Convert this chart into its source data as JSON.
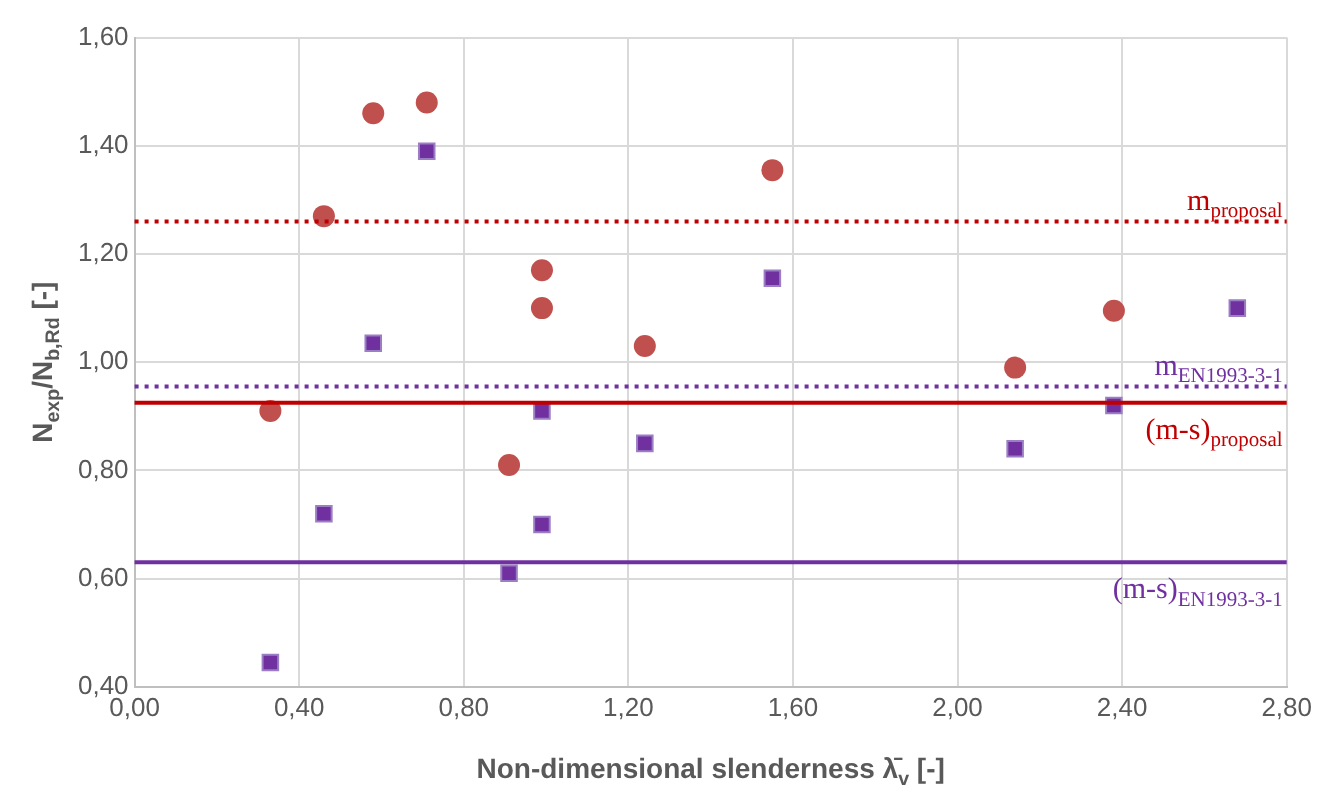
{
  "chart_data": {
    "type": "scatter",
    "xlabel": "Non-dimensional slenderness λ̄$_{v}$ [-]",
    "ylabel": "N$_{exp}$/N$_{b,Rd}$ [-]",
    "series": [
      {
        "color": "#c0504d",
        "marker": "circle",
        "x": [
          0.33,
          0.46,
          0.58,
          0.71,
          0.91,
          0.99,
          0.99,
          1.24,
          1.55,
          2.14,
          2.38
        ],
        "values": [
          0.91,
          1.27,
          1.46,
          1.48,
          0.81,
          1.17,
          1.1,
          1.03,
          1.355,
          0.99,
          1.095
        ]
      },
      {
        "color": "#7030a0",
        "marker": "square",
        "x": [
          0.33,
          0.46,
          0.58,
          0.71,
          0.91,
          0.99,
          0.99,
          1.24,
          1.55,
          2.14,
          2.38,
          2.68
        ],
        "values": [
          0.445,
          0.72,
          1.035,
          1.39,
          0.61,
          0.91,
          0.7,
          0.85,
          1.155,
          0.84,
          0.92,
          1.1
        ]
      }
    ],
    "xlim": [
      0,
      2.8
    ],
    "ylim": [
      0.4,
      1.6
    ],
    "xticks": [
      {
        "value": 0,
        "label": "0,00"
      },
      {
        "value": 0.4,
        "label": "0,40"
      },
      {
        "value": 0.8,
        "label": "0,80"
      },
      {
        "value": 1.2,
        "label": "1,20"
      },
      {
        "value": 1.6,
        "label": "1,60"
      },
      {
        "value": 2,
        "label": "2,00"
      },
      {
        "value": 2.4,
        "label": "2,40"
      },
      {
        "value": 2.8,
        "label": "2,80"
      }
    ],
    "yticks": [
      {
        "value": 0.4,
        "label": "0,40"
      },
      {
        "value": 0.6,
        "label": "0,60"
      },
      {
        "value": 0.8,
        "label": "0,80"
      },
      {
        "value": 1,
        "label": "1,00"
      },
      {
        "value": 1.2,
        "label": "1,20"
      },
      {
        "value": 1.4,
        "label": "1,40"
      },
      {
        "value": 1.6,
        "label": "1,60"
      }
    ],
    "ref_lines": [
      {
        "axis": "y",
        "value": 1.26,
        "label": "m$_{proposal}$",
        "color": "#c00000",
        "line_style": "dotted"
      },
      {
        "axis": "y",
        "value": 0.955,
        "label": "m$_{EN1993-3-1}$",
        "color": "#7030a0",
        "line_style": "dotted"
      },
      {
        "axis": "y",
        "value": 0.925,
        "label": "(m-s)$_{proposal}$",
        "color": "#c00000",
        "line_style": "solid"
      },
      {
        "axis": "y",
        "value": 0.63,
        "label": "(m-s)$_{EN1993-3-1}$",
        "color": "#7030a0",
        "line_style": "solid"
      }
    ],
    "grid": true,
    "legend": false
  }
}
